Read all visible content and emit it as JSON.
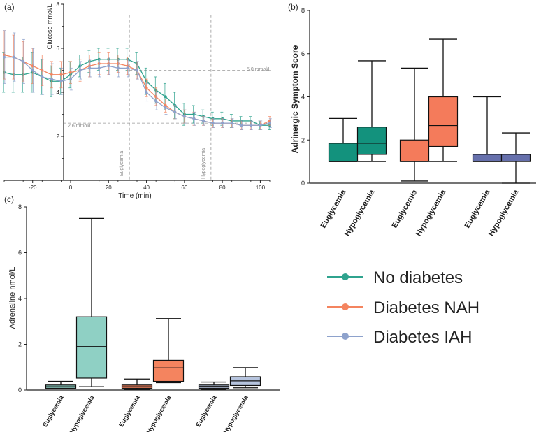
{
  "chart_data": [
    {
      "panel": "(a)",
      "type": "line",
      "xlabel": "Time (min)",
      "ylabel": "Glucose mmol/L",
      "xlim": [
        -35,
        105
      ],
      "ylim": [
        0,
        8
      ],
      "xticks": [
        -20,
        0,
        20,
        40,
        60,
        80,
        100
      ],
      "yticks": [
        2,
        4,
        6,
        8
      ],
      "reference_lines": [
        {
          "value": 5.0,
          "label": "5.0 mmol/L"
        },
        {
          "value": 2.6,
          "label": "2.6 mmol/L"
        }
      ],
      "phase_lines": [
        {
          "x": 31,
          "label": "Euglycemia"
        },
        {
          "x": 74,
          "label": "Hypoglycemia"
        }
      ],
      "x": [
        -35,
        -30,
        -25,
        -20,
        -15,
        -10,
        -5,
        0,
        5,
        10,
        15,
        20,
        25,
        30,
        35,
        40,
        45,
        50,
        55,
        60,
        65,
        70,
        75,
        80,
        85,
        90,
        95,
        100,
        105
      ],
      "series": [
        {
          "name": "No diabetes",
          "color": "#2fa38e",
          "values": [
            4.9,
            4.8,
            4.8,
            4.9,
            4.7,
            4.5,
            4.5,
            4.8,
            5.2,
            5.4,
            5.5,
            5.5,
            5.5,
            5.5,
            5.3,
            4.5,
            4.1,
            3.8,
            3.4,
            3.0,
            3.0,
            2.9,
            2.8,
            2.8,
            2.7,
            2.7,
            2.7,
            2.5,
            2.5
          ],
          "errors": [
            0.9,
            0.8,
            0.8,
            0.9,
            0.8,
            0.7,
            0.6,
            0.6,
            0.5,
            0.5,
            0.5,
            0.5,
            0.5,
            0.5,
            0.5,
            0.6,
            0.6,
            0.6,
            0.6,
            0.5,
            0.4,
            0.3,
            0.3,
            0.3,
            0.3,
            0.2,
            0.2,
            0.2,
            0.2
          ]
        },
        {
          "name": "Diabetes NAH",
          "color": "#f4845f",
          "values": [
            5.7,
            5.6,
            5.4,
            5.2,
            5.0,
            4.8,
            4.8,
            4.9,
            5.0,
            5.2,
            5.3,
            5.3,
            5.3,
            5.2,
            5.0,
            4.2,
            3.8,
            3.4,
            3.1,
            2.9,
            2.8,
            2.7,
            2.6,
            2.6,
            2.6,
            2.5,
            2.5,
            2.5,
            2.7
          ],
          "errors": [
            1.1,
            1.0,
            0.9,
            0.8,
            0.7,
            0.6,
            0.6,
            0.5,
            0.5,
            0.5,
            0.5,
            0.5,
            0.4,
            0.4,
            0.4,
            0.4,
            0.4,
            0.3,
            0.3,
            0.3,
            0.3,
            0.2,
            0.2,
            0.2,
            0.2,
            0.2,
            0.2,
            0.2,
            0.2
          ]
        },
        {
          "name": "Diabetes IAH",
          "color": "#8ea2cc",
          "values": [
            5.6,
            5.6,
            5.4,
            5.0,
            4.7,
            4.6,
            4.5,
            4.6,
            5.0,
            5.1,
            5.1,
            5.2,
            5.1,
            5.1,
            5.0,
            4.0,
            3.6,
            3.3,
            3.1,
            2.9,
            2.8,
            2.7,
            2.6,
            2.6,
            2.6,
            2.5,
            2.5,
            2.5,
            2.6
          ],
          "errors": [
            1.2,
            1.1,
            1.0,
            1.0,
            0.8,
            0.7,
            0.6,
            0.5,
            0.4,
            0.4,
            0.4,
            0.4,
            0.4,
            0.4,
            0.4,
            0.4,
            0.4,
            0.3,
            0.3,
            0.3,
            0.3,
            0.2,
            0.2,
            0.2,
            0.2,
            0.2,
            0.2,
            0.2,
            0.2
          ]
        }
      ]
    },
    {
      "panel": "(b)",
      "type": "box",
      "ylabel": "Adrinergic Symptom Score",
      "ylim": [
        0,
        8
      ],
      "yticks": [
        0,
        2,
        4,
        6,
        8
      ],
      "categories": [
        "Euglycemia",
        "Hypoglycemia",
        "Euglycemia",
        "Hypoglycemia",
        "Euglycemia",
        "Hypoglycemia"
      ],
      "boxes": [
        {
          "group": "No diabetes",
          "color": "#13927d",
          "min": 1.0,
          "q1": 1.0,
          "median": 1.0,
          "q3": 1.85,
          "max": 3.0
        },
        {
          "group": "No diabetes",
          "color": "#13927d",
          "min": 1.0,
          "q1": 1.33,
          "median": 1.85,
          "q3": 2.6,
          "max": 5.67
        },
        {
          "group": "Diabetes NAH",
          "color": "#f47b5b",
          "min": 0.1,
          "q1": 1.0,
          "median": 1.0,
          "q3": 2.0,
          "max": 5.33
        },
        {
          "group": "Diabetes NAH",
          "color": "#f47b5b",
          "min": 1.0,
          "q1": 1.7,
          "median": 2.67,
          "q3": 4.0,
          "max": 6.67
        },
        {
          "group": "Diabetes IAH",
          "color": "#6670ac",
          "min": 1.0,
          "q1": 1.0,
          "median": 1.33,
          "q3": 1.33,
          "max": 4.0
        },
        {
          "group": "Diabetes IAH",
          "color": "#6670ac",
          "min": 0.0,
          "q1": 1.0,
          "median": 1.33,
          "q3": 1.33,
          "max": 2.33
        }
      ]
    },
    {
      "panel": "(c)",
      "type": "box",
      "ylabel": "Adrenaline nmol/L",
      "ylim": [
        0,
        8
      ],
      "yticks": [
        0,
        2,
        4,
        6,
        8
      ],
      "categories": [
        "Euglycemia",
        "Hypoglycemia",
        "Euglycemia",
        "Hypoglycemia",
        "Euglycemia",
        "Hypoglycemia"
      ],
      "boxes": [
        {
          "group": "No diabetes",
          "color": "#8fd0c4",
          "min": 0.05,
          "q1": 0.08,
          "median": 0.15,
          "q3": 0.22,
          "max": 0.38
        },
        {
          "group": "No diabetes",
          "color": "#8fd0c4",
          "min": 0.15,
          "q1": 0.52,
          "median": 1.9,
          "q3": 3.2,
          "max": 7.5
        },
        {
          "group": "Diabetes NAH",
          "color": "#f4845f",
          "min": 0.03,
          "q1": 0.08,
          "median": 0.15,
          "q3": 0.22,
          "max": 0.48
        },
        {
          "group": "Diabetes NAH",
          "color": "#f4845f",
          "min": 0.32,
          "q1": 0.38,
          "median": 0.97,
          "q3": 1.3,
          "max": 3.12
        },
        {
          "group": "Diabetes IAH",
          "color": "#b6c4de",
          "min": 0.03,
          "q1": 0.08,
          "median": 0.16,
          "q3": 0.22,
          "max": 0.35
        },
        {
          "group": "Diabetes IAH",
          "color": "#b6c4de",
          "min": 0.1,
          "q1": 0.2,
          "median": 0.4,
          "q3": 0.58,
          "max": 0.98
        }
      ]
    }
  ],
  "legend": [
    {
      "label": "No diabetes",
      "color": "#2fa38e"
    },
    {
      "label": "Diabetes NAH",
      "color": "#f4845f"
    },
    {
      "label": "Diabetes IAH",
      "color": "#8ea2cc"
    }
  ]
}
